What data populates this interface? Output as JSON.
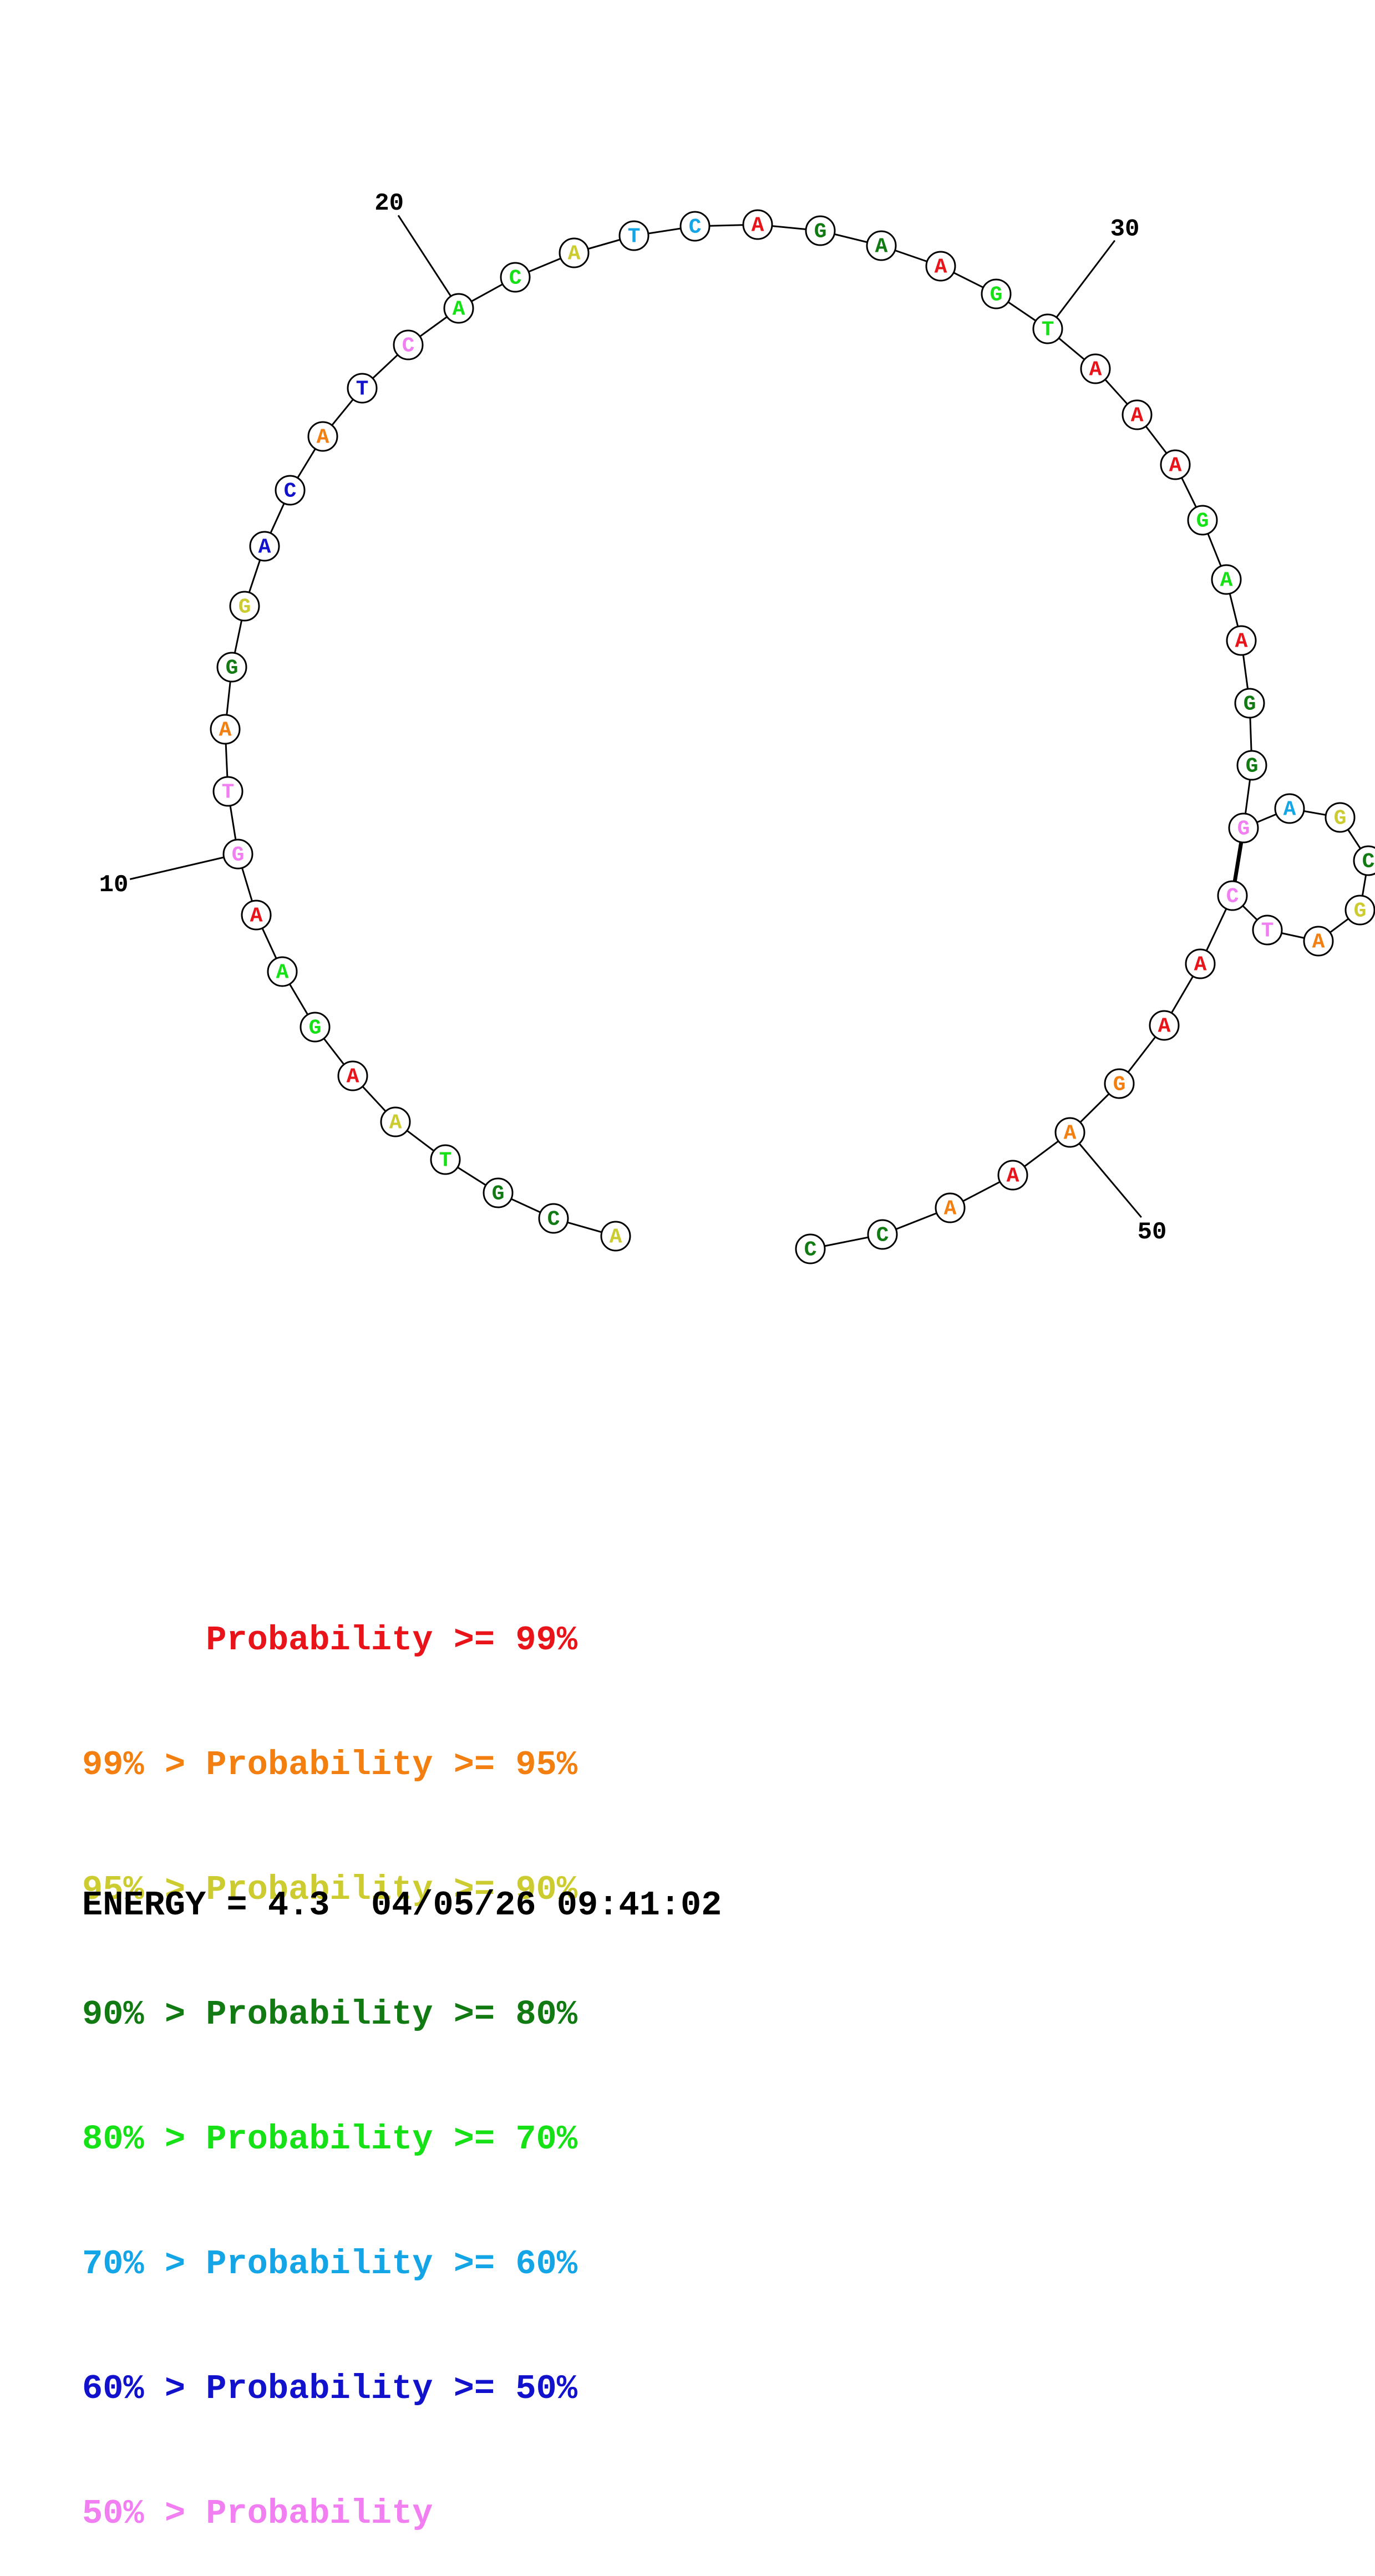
{
  "colors": {
    "p99": "#e8141a",
    "p95": "#f27f10",
    "p90": "#cccc30",
    "p80": "#127a12",
    "p70": "#16e016",
    "p60": "#14a5e6",
    "p50": "#1212cc",
    "plt50": "#f27ff2"
  },
  "nucleotides": [
    {
      "base": "A",
      "prob": "p90"
    },
    {
      "base": "C",
      "prob": "p80"
    },
    {
      "base": "G",
      "prob": "p80"
    },
    {
      "base": "T",
      "prob": "p70"
    },
    {
      "base": "A",
      "prob": "p90"
    },
    {
      "base": "A",
      "prob": "p99"
    },
    {
      "base": "G",
      "prob": "p70"
    },
    {
      "base": "A",
      "prob": "p70"
    },
    {
      "base": "A",
      "prob": "p99"
    },
    {
      "base": "G",
      "prob": "plt50"
    },
    {
      "base": "T",
      "prob": "plt50"
    },
    {
      "base": "A",
      "prob": "p95"
    },
    {
      "base": "G",
      "prob": "p80"
    },
    {
      "base": "G",
      "prob": "p90"
    },
    {
      "base": "A",
      "prob": "p50"
    },
    {
      "base": "C",
      "prob": "p50"
    },
    {
      "base": "A",
      "prob": "p95"
    },
    {
      "base": "T",
      "prob": "p50"
    },
    {
      "base": "C",
      "prob": "plt50"
    },
    {
      "base": "A",
      "prob": "p70"
    },
    {
      "base": "C",
      "prob": "p70"
    },
    {
      "base": "A",
      "prob": "p90"
    },
    {
      "base": "T",
      "prob": "p60"
    },
    {
      "base": "C",
      "prob": "p60"
    },
    {
      "base": "A",
      "prob": "p99"
    },
    {
      "base": "G",
      "prob": "p80"
    },
    {
      "base": "A",
      "prob": "p80"
    },
    {
      "base": "A",
      "prob": "p99"
    },
    {
      "base": "G",
      "prob": "p70"
    },
    {
      "base": "T",
      "prob": "p70"
    },
    {
      "base": "A",
      "prob": "p99"
    },
    {
      "base": "A",
      "prob": "p99"
    },
    {
      "base": "A",
      "prob": "p99"
    },
    {
      "base": "G",
      "prob": "p70"
    },
    {
      "base": "A",
      "prob": "p70"
    },
    {
      "base": "A",
      "prob": "p99"
    },
    {
      "base": "G",
      "prob": "p80"
    },
    {
      "base": "G",
      "prob": "p80"
    },
    {
      "base": "G",
      "prob": "plt50"
    },
    {
      "base": "A",
      "prob": "p60"
    },
    {
      "base": "G",
      "prob": "p90"
    },
    {
      "base": "C",
      "prob": "p80"
    },
    {
      "base": "G",
      "prob": "p90"
    },
    {
      "base": "A",
      "prob": "p95"
    },
    {
      "base": "T",
      "prob": "plt50"
    },
    {
      "base": "C",
      "prob": "plt50"
    },
    {
      "base": "A",
      "prob": "p99"
    },
    {
      "base": "A",
      "prob": "p99"
    },
    {
      "base": "G",
      "prob": "p95"
    },
    {
      "base": "A",
      "prob": "p95"
    },
    {
      "base": "A",
      "prob": "p99"
    },
    {
      "base": "A",
      "prob": "p95"
    },
    {
      "base": "C",
      "prob": "p80"
    },
    {
      "base": "C",
      "prob": "p80"
    }
  ],
  "pairs": [
    [
      39,
      46
    ]
  ],
  "number_labels": [
    {
      "text": "10",
      "index": 10
    },
    {
      "text": "20",
      "index": 20
    },
    {
      "text": "30",
      "index": 30
    },
    {
      "text": "50",
      "index": 50
    }
  ],
  "legend": [
    {
      "text": "      Probability >= 99%",
      "color": "#e8141a"
    },
    {
      "text": "99% > Probability >= 95%",
      "color": "#f27f10"
    },
    {
      "text": "95% > Probability >= 90%",
      "color": "#cccc30"
    },
    {
      "text": "90% > Probability >= 80%",
      "color": "#127a12"
    },
    {
      "text": "80% > Probability >= 70%",
      "color": "#16e016"
    },
    {
      "text": "70% > Probability >= 60%",
      "color": "#14a5e6"
    },
    {
      "text": "60% > Probability >= 50%",
      "color": "#1212cc"
    },
    {
      "text": "50% > Probability",
      "color": "#f27ff2"
    }
  ],
  "energy_line": "ENERGY = 4.3  04/05/26 09:41:02"
}
